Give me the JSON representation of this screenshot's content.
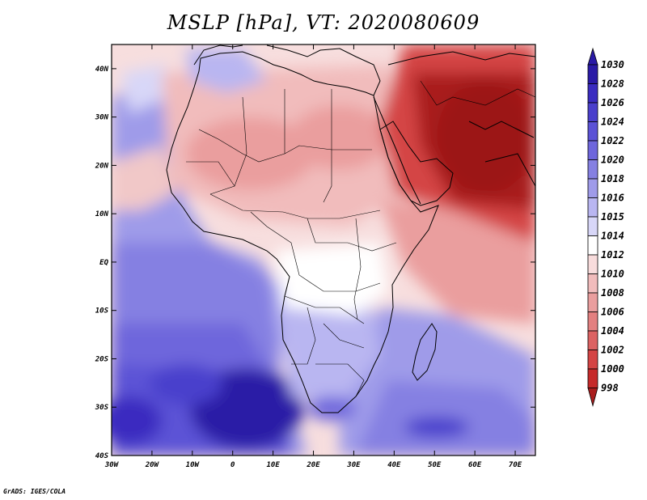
{
  "title": "MSLP [hPa], VT: 2020080609",
  "credit": "GrADS: IGES/COLA",
  "map": {
    "lon_range": [
      -30,
      75
    ],
    "lat_range": [
      -40,
      45
    ],
    "x_tick_labels": [
      "30W",
      "20W",
      "10W",
      "0",
      "10E",
      "20E",
      "30E",
      "40E",
      "50E",
      "60E",
      "70E"
    ],
    "y_tick_labels": [
      "40N",
      "30N",
      "20N",
      "10N",
      "EQ",
      "10S",
      "20S",
      "30S",
      "40S"
    ]
  },
  "colorbar": {
    "levels": [
      "1030",
      "1028",
      "1026",
      "1024",
      "1022",
      "1020",
      "1018",
      "1016",
      "1015",
      "1014",
      "1012",
      "1010",
      "1008",
      "1006",
      "1004",
      "1002",
      "1000",
      "998"
    ],
    "colors": [
      "#2a1aa6",
      "#3a2cc0",
      "#4a3fcc",
      "#5b52d6",
      "#6e66dc",
      "#8580e2",
      "#9f9be9",
      "#b9b6f1",
      "#d8d7f8",
      "#ffffff",
      "#f8dcdc",
      "#f1bcbc",
      "#ea9e9e",
      "#e38080",
      "#dc6262",
      "#d44444",
      "#c62a2a",
      "#a91d1d"
    ]
  }
}
